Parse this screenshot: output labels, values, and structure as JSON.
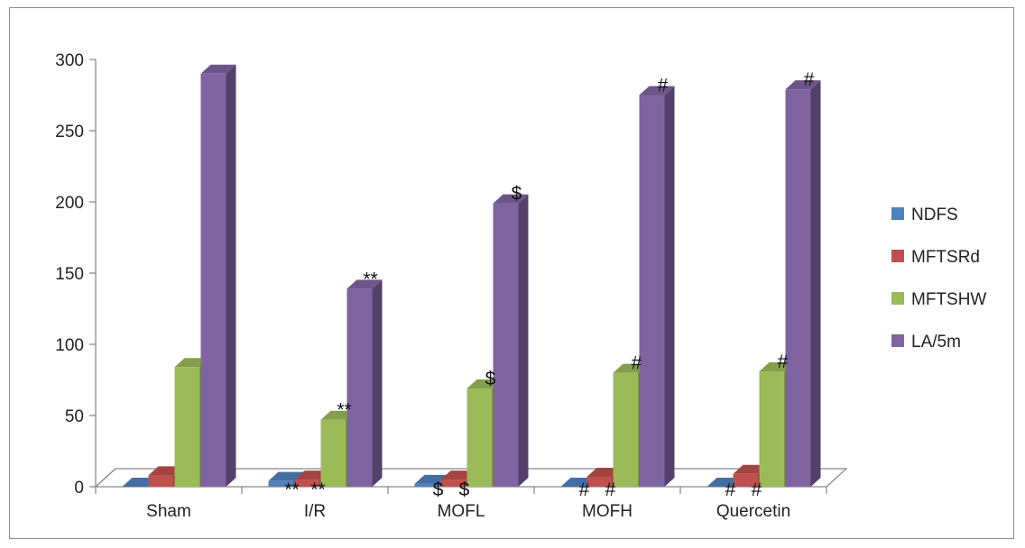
{
  "chart_data": {
    "type": "bar",
    "style": "3d-clustered-column",
    "categories": [
      "Sham",
      "I/R",
      "MOFL",
      "MOFH",
      "Quercetin"
    ],
    "series": [
      {
        "name": "NDFS",
        "color": "#4F81BD",
        "values": [
          0,
          4,
          2,
          0,
          0
        ],
        "annotations": [
          "",
          "**",
          "$",
          "#",
          "#"
        ]
      },
      {
        "name": "MFTSRd",
        "color": "#C0504D",
        "values": [
          8,
          5,
          5,
          7,
          9
        ],
        "annotations": [
          "",
          "**",
          "$",
          "#",
          "#"
        ]
      },
      {
        "name": "MFTSHW",
        "color": "#9BBB59",
        "values": [
          84,
          47,
          69,
          80,
          81
        ],
        "annotations": [
          "",
          "**",
          "$",
          "#",
          "#"
        ]
      },
      {
        "name": "LA/5m",
        "color": "#8064A2",
        "values": [
          290,
          139,
          199,
          275,
          279
        ],
        "annotations": [
          "",
          "**",
          "$",
          "#",
          "#"
        ]
      }
    ],
    "ylim": [
      0,
      300
    ],
    "yticks": [
      0,
      50,
      100,
      150,
      200,
      250,
      300
    ],
    "legend_position": "right",
    "grid": false,
    "title": "",
    "xlabel": "",
    "ylabel": ""
  }
}
